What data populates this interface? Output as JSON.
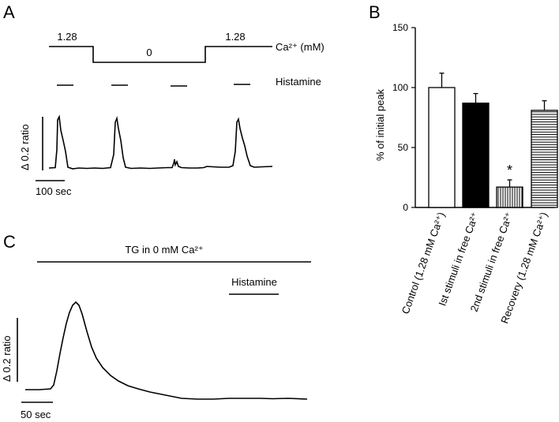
{
  "panels": {
    "A": {
      "label": "A",
      "ca_protocol": {
        "legend": "Ca²⁺ (mM)",
        "levels": [
          "1.28",
          "0",
          "1.28"
        ]
      },
      "stimulus_label": "Histamine",
      "ratio_scale": "Δ 0.2 ratio",
      "time_scale": "100 sec"
    },
    "B": {
      "label": "B"
    },
    "C": {
      "label": "C",
      "condition": "TG in 0 mM Ca²⁺",
      "stimulus_label": "Histamine",
      "ratio_scale": "Δ 0.2 ratio",
      "time_scale": "50 sec"
    }
  },
  "chart_data": {
    "type": "bar",
    "title": "",
    "xlabel": "",
    "ylabel": "% of initial peak",
    "ylim": [
      0,
      150
    ],
    "yticks": [
      "0",
      "50",
      "100",
      "150"
    ],
    "categories": [
      "Control (1.28 mM Ca²⁺)",
      "Ist stimuli in free Ca²⁺",
      "2nd stimuli in free Ca²⁺",
      "Recovery (1.28 mM Ca²⁺)"
    ],
    "values": [
      100,
      87,
      17,
      81
    ],
    "errors": [
      12,
      8,
      6,
      8
    ],
    "fills": [
      "open",
      "solid",
      "vertical-stripes",
      "horizontal-stripes"
    ],
    "significance": [
      "",
      "",
      "*",
      ""
    ]
  }
}
